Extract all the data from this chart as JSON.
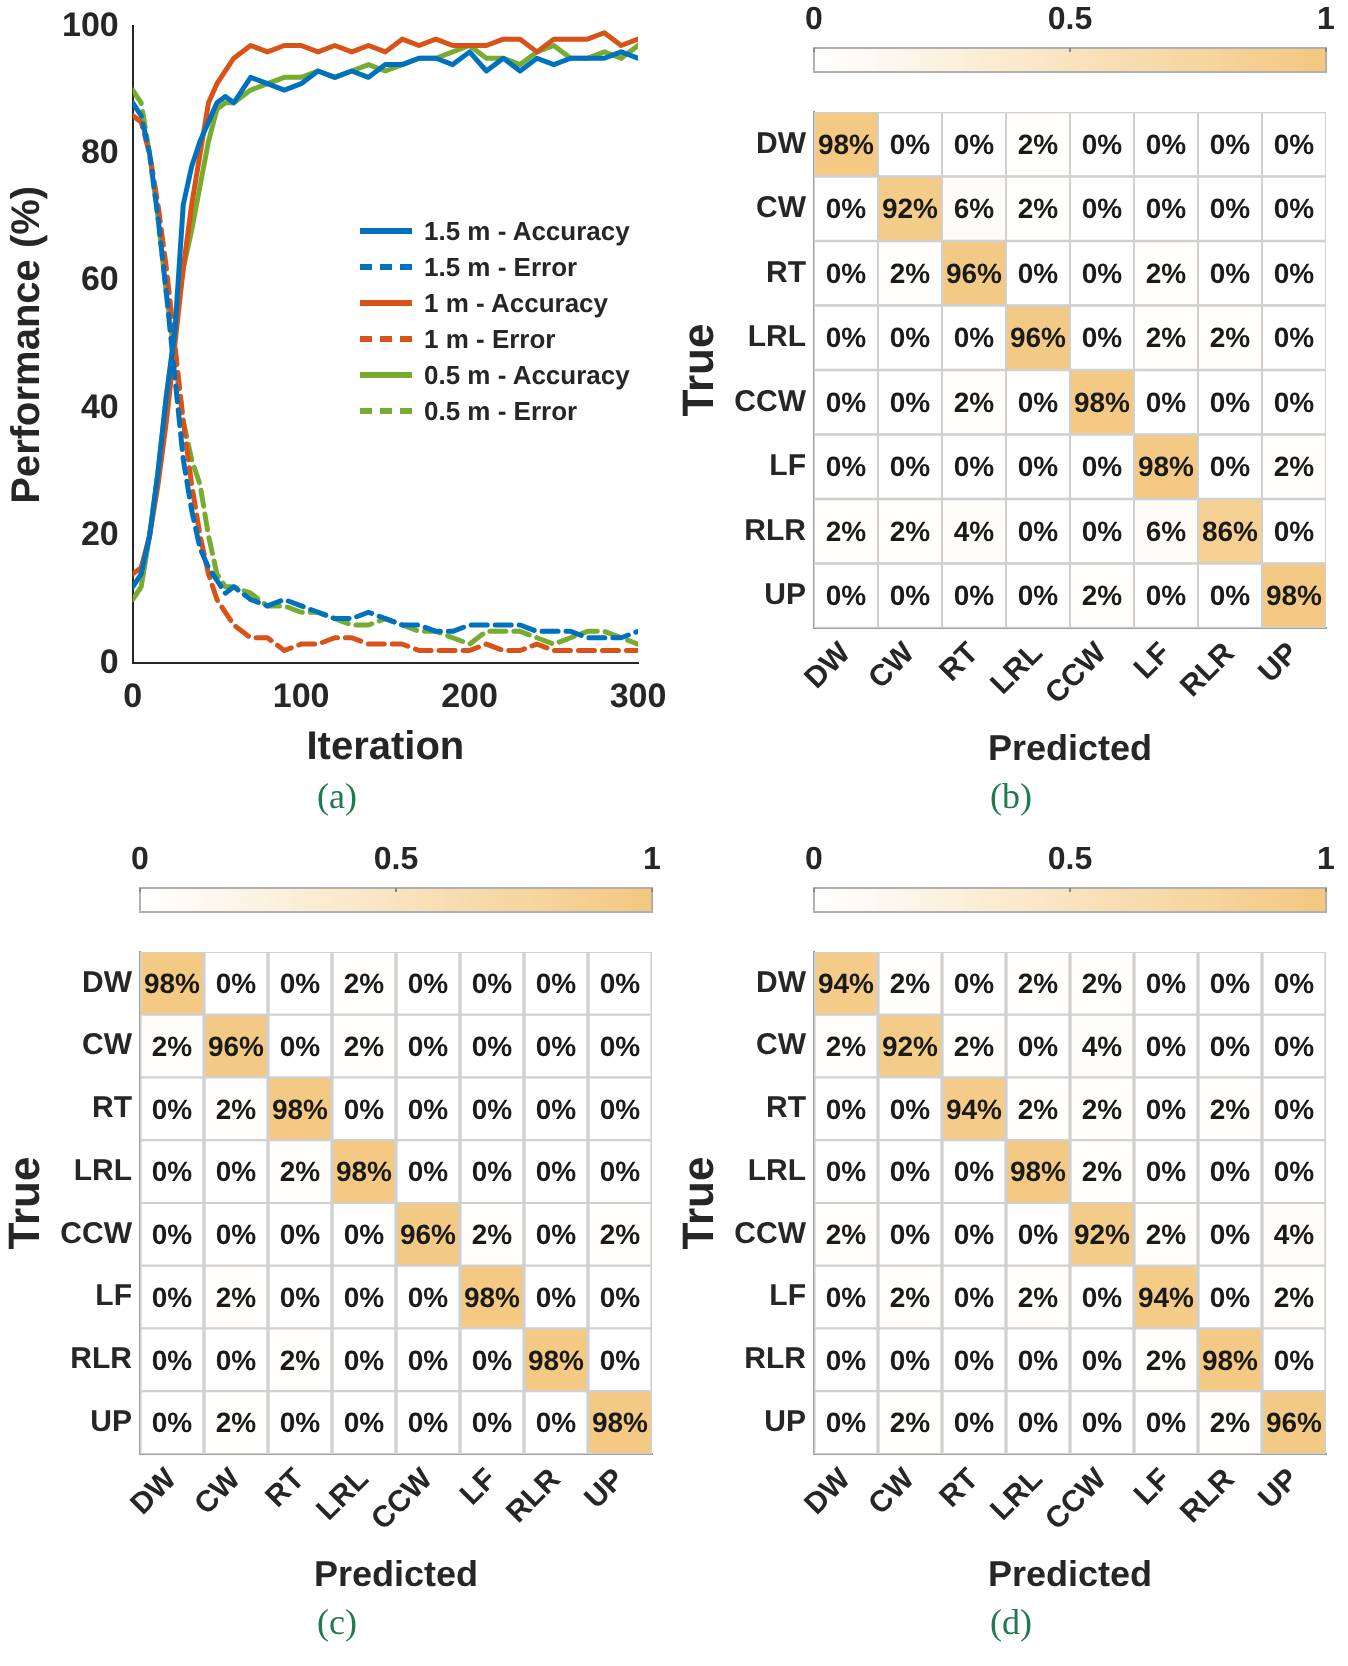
{
  "chart_data": [
    {
      "type": "line",
      "xlabel": "Iteration",
      "ylabel": "Performance (%)",
      "annotations": [
        "(a)"
      ],
      "xlim": [
        0,
        300
      ],
      "xticks": [
        0,
        100,
        200,
        300
      ],
      "ylim": [
        0,
        100
      ],
      "yticks": [
        0,
        20,
        40,
        60,
        80,
        100
      ],
      "legend": "right",
      "x": [
        0,
        5,
        10,
        15,
        20,
        25,
        30,
        35,
        40,
        45,
        50,
        55,
        60,
        70,
        80,
        90,
        100,
        110,
        120,
        130,
        140,
        150,
        160,
        170,
        180,
        190,
        200,
        210,
        220,
        230,
        240,
        250,
        260,
        270,
        280,
        290,
        300
      ],
      "series": [
        {
          "name": "1.5 m - Accuracy",
          "color": "#0072bd",
          "line_style": "solid",
          "values": [
            12,
            14,
            20,
            30,
            42,
            52,
            72,
            78,
            82,
            85,
            88,
            89,
            88,
            92,
            91,
            90,
            91,
            93,
            92,
            93,
            92,
            94,
            94,
            95,
            95,
            94,
            96,
            93,
            95,
            93,
            95,
            94,
            95,
            95,
            95,
            96,
            95
          ]
        },
        {
          "name": "1.5 m - Error",
          "color": "#0072bd",
          "line_style": "dashed",
          "values": [
            88,
            86,
            80,
            70,
            58,
            45,
            32,
            24,
            18,
            15,
            13,
            11,
            12,
            10,
            9,
            10,
            9,
            8,
            7,
            7,
            8,
            7,
            6,
            6,
            5,
            5,
            6,
            6,
            6,
            6,
            5,
            5,
            5,
            4,
            4,
            4,
            5
          ]
        },
        {
          "name": "1 m - Accuracy",
          "color": "#d95319",
          "line_style": "solid",
          "values": [
            14,
            15,
            20,
            28,
            38,
            50,
            62,
            72,
            80,
            88,
            91,
            93,
            95,
            97,
            96,
            97,
            97,
            96,
            97,
            96,
            97,
            96,
            98,
            97,
            98,
            97,
            97,
            97,
            98,
            98,
            96,
            98,
            98,
            98,
            99,
            97,
            98
          ]
        },
        {
          "name": "1 m - Error",
          "color": "#d95319",
          "line_style": "dashed",
          "values": [
            86,
            85,
            80,
            72,
            62,
            50,
            38,
            28,
            20,
            14,
            10,
            8,
            6,
            4,
            4,
            2,
            3,
            3,
            4,
            4,
            3,
            3,
            3,
            2,
            2,
            2,
            2,
            3,
            2,
            2,
            3,
            2,
            2,
            2,
            2,
            2,
            2
          ]
        },
        {
          "name": "0.5 m - Accuracy",
          "color": "#77ac30",
          "line_style": "solid",
          "values": [
            10,
            12,
            20,
            30,
            42,
            52,
            62,
            68,
            75,
            82,
            87,
            88,
            88,
            90,
            91,
            92,
            92,
            93,
            92,
            93,
            94,
            93,
            94,
            95,
            95,
            96,
            97,
            95,
            95,
            94,
            96,
            97,
            95,
            95,
            96,
            95,
            97
          ]
        },
        {
          "name": "0.5 m - Error",
          "color": "#77ac30",
          "line_style": "dashed",
          "values": [
            90,
            88,
            80,
            70,
            58,
            48,
            38,
            32,
            28,
            20,
            14,
            12,
            12,
            11,
            9,
            9,
            8,
            8,
            7,
            6,
            6,
            7,
            6,
            5,
            5,
            4,
            3,
            5,
            5,
            5,
            4,
            3,
            4,
            5,
            5,
            4,
            3
          ]
        }
      ]
    },
    {
      "type": "heatmap",
      "xlabel": "Predicted",
      "ylabel": "True",
      "annotations": [
        "(b)"
      ],
      "clim": [
        0,
        1
      ],
      "cticks": [
        0,
        0.5,
        1
      ],
      "categories": [
        "DW",
        "CW",
        "RT",
        "LRL",
        "CCW",
        "LF",
        "RLR",
        "UP"
      ],
      "y_categories": [
        "DW",
        "CW",
        "RT",
        "LRL",
        "CCW",
        "LF",
        "RLR",
        "UP"
      ],
      "cells": [
        [
          0.98,
          0,
          0,
          0.02,
          0,
          0,
          0,
          0
        ],
        [
          0,
          0.92,
          0.06,
          0.02,
          0,
          0,
          0,
          0
        ],
        [
          0,
          0.02,
          0.96,
          0,
          0,
          0.02,
          0,
          0
        ],
        [
          0,
          0,
          0,
          0.96,
          0,
          0.02,
          0.02,
          0
        ],
        [
          0,
          0,
          0.02,
          0,
          0.98,
          0,
          0,
          0
        ],
        [
          0,
          0,
          0,
          0,
          0,
          0.98,
          0,
          0.02
        ],
        [
          0.02,
          0.02,
          0.04,
          0,
          0,
          0.06,
          0.86,
          0
        ],
        [
          0,
          0,
          0,
          0,
          0.02,
          0,
          0,
          0.98
        ]
      ],
      "cell_labels": [
        [
          "98%",
          "0%",
          "0%",
          "2%",
          "0%",
          "0%",
          "0%",
          "0%"
        ],
        [
          "0%",
          "92%",
          "6%",
          "2%",
          "0%",
          "0%",
          "0%",
          "0%"
        ],
        [
          "0%",
          "2%",
          "96%",
          "0%",
          "0%",
          "2%",
          "0%",
          "0%"
        ],
        [
          "0%",
          "0%",
          "0%",
          "96%",
          "0%",
          "2%",
          "2%",
          "0%"
        ],
        [
          "0%",
          "0%",
          "2%",
          "0%",
          "98%",
          "0%",
          "0%",
          "0%"
        ],
        [
          "0%",
          "0%",
          "0%",
          "0%",
          "0%",
          "98%",
          "0%",
          "2%"
        ],
        [
          "2%",
          "2%",
          "4%",
          "0%",
          "0%",
          "6%",
          "86%",
          "0%"
        ],
        [
          "0%",
          "0%",
          "0%",
          "0%",
          "2%",
          "0%",
          "0%",
          "98%"
        ]
      ]
    },
    {
      "type": "heatmap",
      "xlabel": "Predicted",
      "ylabel": "True",
      "annotations": [
        "(c)"
      ],
      "clim": [
        0,
        1
      ],
      "cticks": [
        0,
        0.5,
        1
      ],
      "categories": [
        "DW",
        "CW",
        "RT",
        "LRL",
        "CCW",
        "LF",
        "RLR",
        "UP"
      ],
      "y_categories": [
        "DW",
        "CW",
        "RT",
        "LRL",
        "CCW",
        "LF",
        "RLR",
        "UP"
      ],
      "cells": [
        [
          0.98,
          0,
          0,
          0.02,
          0,
          0,
          0,
          0
        ],
        [
          0.02,
          0.96,
          0,
          0.02,
          0,
          0,
          0,
          0
        ],
        [
          0,
          0.02,
          0.98,
          0,
          0,
          0,
          0,
          0
        ],
        [
          0,
          0,
          0.02,
          0.98,
          0,
          0,
          0,
          0
        ],
        [
          0,
          0,
          0,
          0,
          0.96,
          0.02,
          0,
          0.02
        ],
        [
          0,
          0.02,
          0,
          0,
          0,
          0.98,
          0,
          0
        ],
        [
          0,
          0,
          0.02,
          0,
          0,
          0,
          0.98,
          0
        ],
        [
          0,
          0.02,
          0,
          0,
          0,
          0,
          0,
          0.98
        ]
      ],
      "cell_labels": [
        [
          "98%",
          "0%",
          "0%",
          "2%",
          "0%",
          "0%",
          "0%",
          "0%"
        ],
        [
          "2%",
          "96%",
          "0%",
          "2%",
          "0%",
          "0%",
          "0%",
          "0%"
        ],
        [
          "0%",
          "2%",
          "98%",
          "0%",
          "0%",
          "0%",
          "0%",
          "0%"
        ],
        [
          "0%",
          "0%",
          "2%",
          "98%",
          "0%",
          "0%",
          "0%",
          "0%"
        ],
        [
          "0%",
          "0%",
          "0%",
          "0%",
          "96%",
          "2%",
          "0%",
          "2%"
        ],
        [
          "0%",
          "2%",
          "0%",
          "0%",
          "0%",
          "98%",
          "0%",
          "0%"
        ],
        [
          "0%",
          "0%",
          "2%",
          "0%",
          "0%",
          "0%",
          "98%",
          "0%"
        ],
        [
          "0%",
          "2%",
          "0%",
          "0%",
          "0%",
          "0%",
          "0%",
          "98%"
        ]
      ]
    },
    {
      "type": "heatmap",
      "xlabel": "Predicted",
      "ylabel": "True",
      "annotations": [
        "(d)"
      ],
      "clim": [
        0,
        1
      ],
      "cticks": [
        0,
        0.5,
        1
      ],
      "categories": [
        "DW",
        "CW",
        "RT",
        "LRL",
        "CCW",
        "LF",
        "RLR",
        "UP"
      ],
      "y_categories": [
        "DW",
        "CW",
        "RT",
        "LRL",
        "CCW",
        "LF",
        "RLR",
        "UP"
      ],
      "cells": [
        [
          0.94,
          0.02,
          0,
          0.02,
          0.02,
          0,
          0,
          0
        ],
        [
          0.02,
          0.92,
          0.02,
          0,
          0.04,
          0,
          0,
          0
        ],
        [
          0,
          0,
          0.94,
          0.02,
          0.02,
          0,
          0.02,
          0
        ],
        [
          0,
          0,
          0,
          0.98,
          0.02,
          0,
          0,
          0
        ],
        [
          0.02,
          0,
          0,
          0,
          0.92,
          0.02,
          0,
          0.04
        ],
        [
          0,
          0.02,
          0,
          0.02,
          0,
          0.94,
          0,
          0.02
        ],
        [
          0,
          0,
          0,
          0,
          0,
          0.02,
          0.98,
          0
        ],
        [
          0,
          0.02,
          0,
          0,
          0,
          0,
          0.02,
          0.96
        ]
      ],
      "cell_labels": [
        [
          "94%",
          "2%",
          "0%",
          "2%",
          "2%",
          "0%",
          "0%",
          "0%"
        ],
        [
          "2%",
          "92%",
          "2%",
          "0%",
          "4%",
          "0%",
          "0%",
          "0%"
        ],
        [
          "0%",
          "0%",
          "94%",
          "2%",
          "2%",
          "0%",
          "2%",
          "0%"
        ],
        [
          "0%",
          "0%",
          "0%",
          "98%",
          "2%",
          "0%",
          "0%",
          "0%"
        ],
        [
          "2%",
          "0%",
          "0%",
          "0%",
          "92%",
          "2%",
          "0%",
          "4%"
        ],
        [
          "0%",
          "2%",
          "0%",
          "2%",
          "0%",
          "94%",
          "0%",
          "2%"
        ],
        [
          "0%",
          "0%",
          "0%",
          "0%",
          "0%",
          "2%",
          "98%",
          "0%"
        ],
        [
          "0%",
          "2%",
          "0%",
          "0%",
          "0%",
          "0%",
          "2%",
          "96%"
        ]
      ]
    }
  ]
}
